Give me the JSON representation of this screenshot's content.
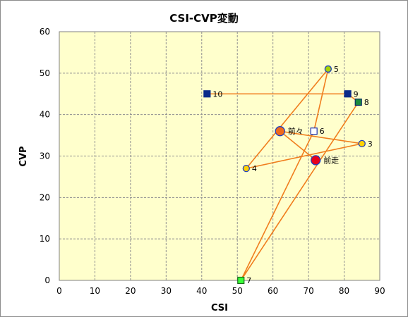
{
  "chart_data": {
    "type": "scatter",
    "title": "CSI-CVP変動",
    "xlabel": "CSI",
    "ylabel": "CVP",
    "xlim": [
      0,
      90
    ],
    "ylim": [
      0,
      60
    ],
    "xticks": [
      0,
      10,
      20,
      30,
      40,
      50,
      60,
      70,
      80,
      90
    ],
    "yticks": [
      0,
      10,
      20,
      30,
      40,
      50,
      60
    ],
    "grid": true,
    "colors": {
      "plot_background": "#ffffcc",
      "grid": "#8f8f8f",
      "line": "#f07e1e"
    },
    "points": [
      {
        "label": "前走",
        "x": 72,
        "y": 29,
        "marker": "circle",
        "size": "large",
        "fill": "#e8001c",
        "stroke": "#2040c0"
      },
      {
        "label": "前々",
        "x": 62,
        "y": 36,
        "marker": "circle",
        "size": "large",
        "fill": "#f06a1c",
        "stroke": "#2040c0"
      },
      {
        "label": "3",
        "x": 85,
        "y": 33,
        "marker": "circle",
        "size": "small",
        "fill": "#ffd200",
        "stroke": "#2040c0"
      },
      {
        "label": "4",
        "x": 52.5,
        "y": 27,
        "marker": "circle",
        "size": "small",
        "fill": "#ffd200",
        "stroke": "#2040c0"
      },
      {
        "label": "5",
        "x": 75.5,
        "y": 51,
        "marker": "circle",
        "size": "small",
        "fill": "#a8d400",
        "stroke": "#2040c0"
      },
      {
        "label": "6",
        "x": 71.5,
        "y": 36,
        "marker": "square",
        "size": "small",
        "fill": "#ffffff",
        "stroke": "#1a2fb0"
      },
      {
        "label": "7",
        "x": 51,
        "y": 0,
        "marker": "square",
        "size": "small",
        "fill": "#3aff3a",
        "stroke": "#1a6a1a"
      },
      {
        "label": "8",
        "x": 84,
        "y": 43,
        "marker": "square",
        "size": "small",
        "fill": "#1c8a3c",
        "stroke": "#0a2a6a"
      },
      {
        "label": "9",
        "x": 81,
        "y": 45,
        "marker": "square",
        "size": "small",
        "fill": "#0a2a8a",
        "stroke": "#0a2a8a"
      },
      {
        "label": "10",
        "x": 41.5,
        "y": 45,
        "marker": "square",
        "size": "small",
        "fill": "#0a2a8a",
        "stroke": "#0a2a8a"
      }
    ],
    "path_order": [
      "前走",
      "前々",
      "3",
      "4",
      "5",
      "6",
      "7",
      "8",
      "9",
      "10"
    ]
  }
}
